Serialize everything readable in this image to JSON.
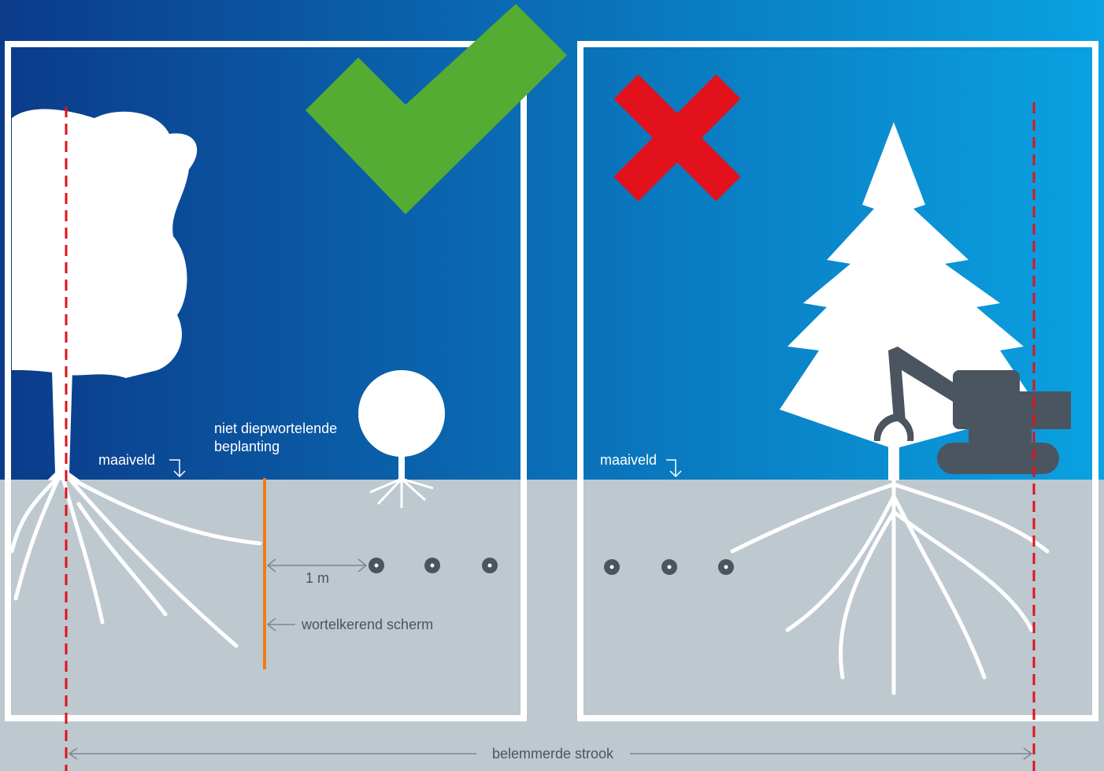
{
  "left_panel": {
    "ground_label": "maaiveld",
    "plant_label": [
      "niet diepwortelende",
      "beplanting"
    ],
    "distance_label": "1 m",
    "screen_label": "wortelkerend scherm"
  },
  "right_panel": {
    "ground_label": "maaiveld"
  },
  "footer": {
    "strip_label": "belemmerde strook"
  }
}
